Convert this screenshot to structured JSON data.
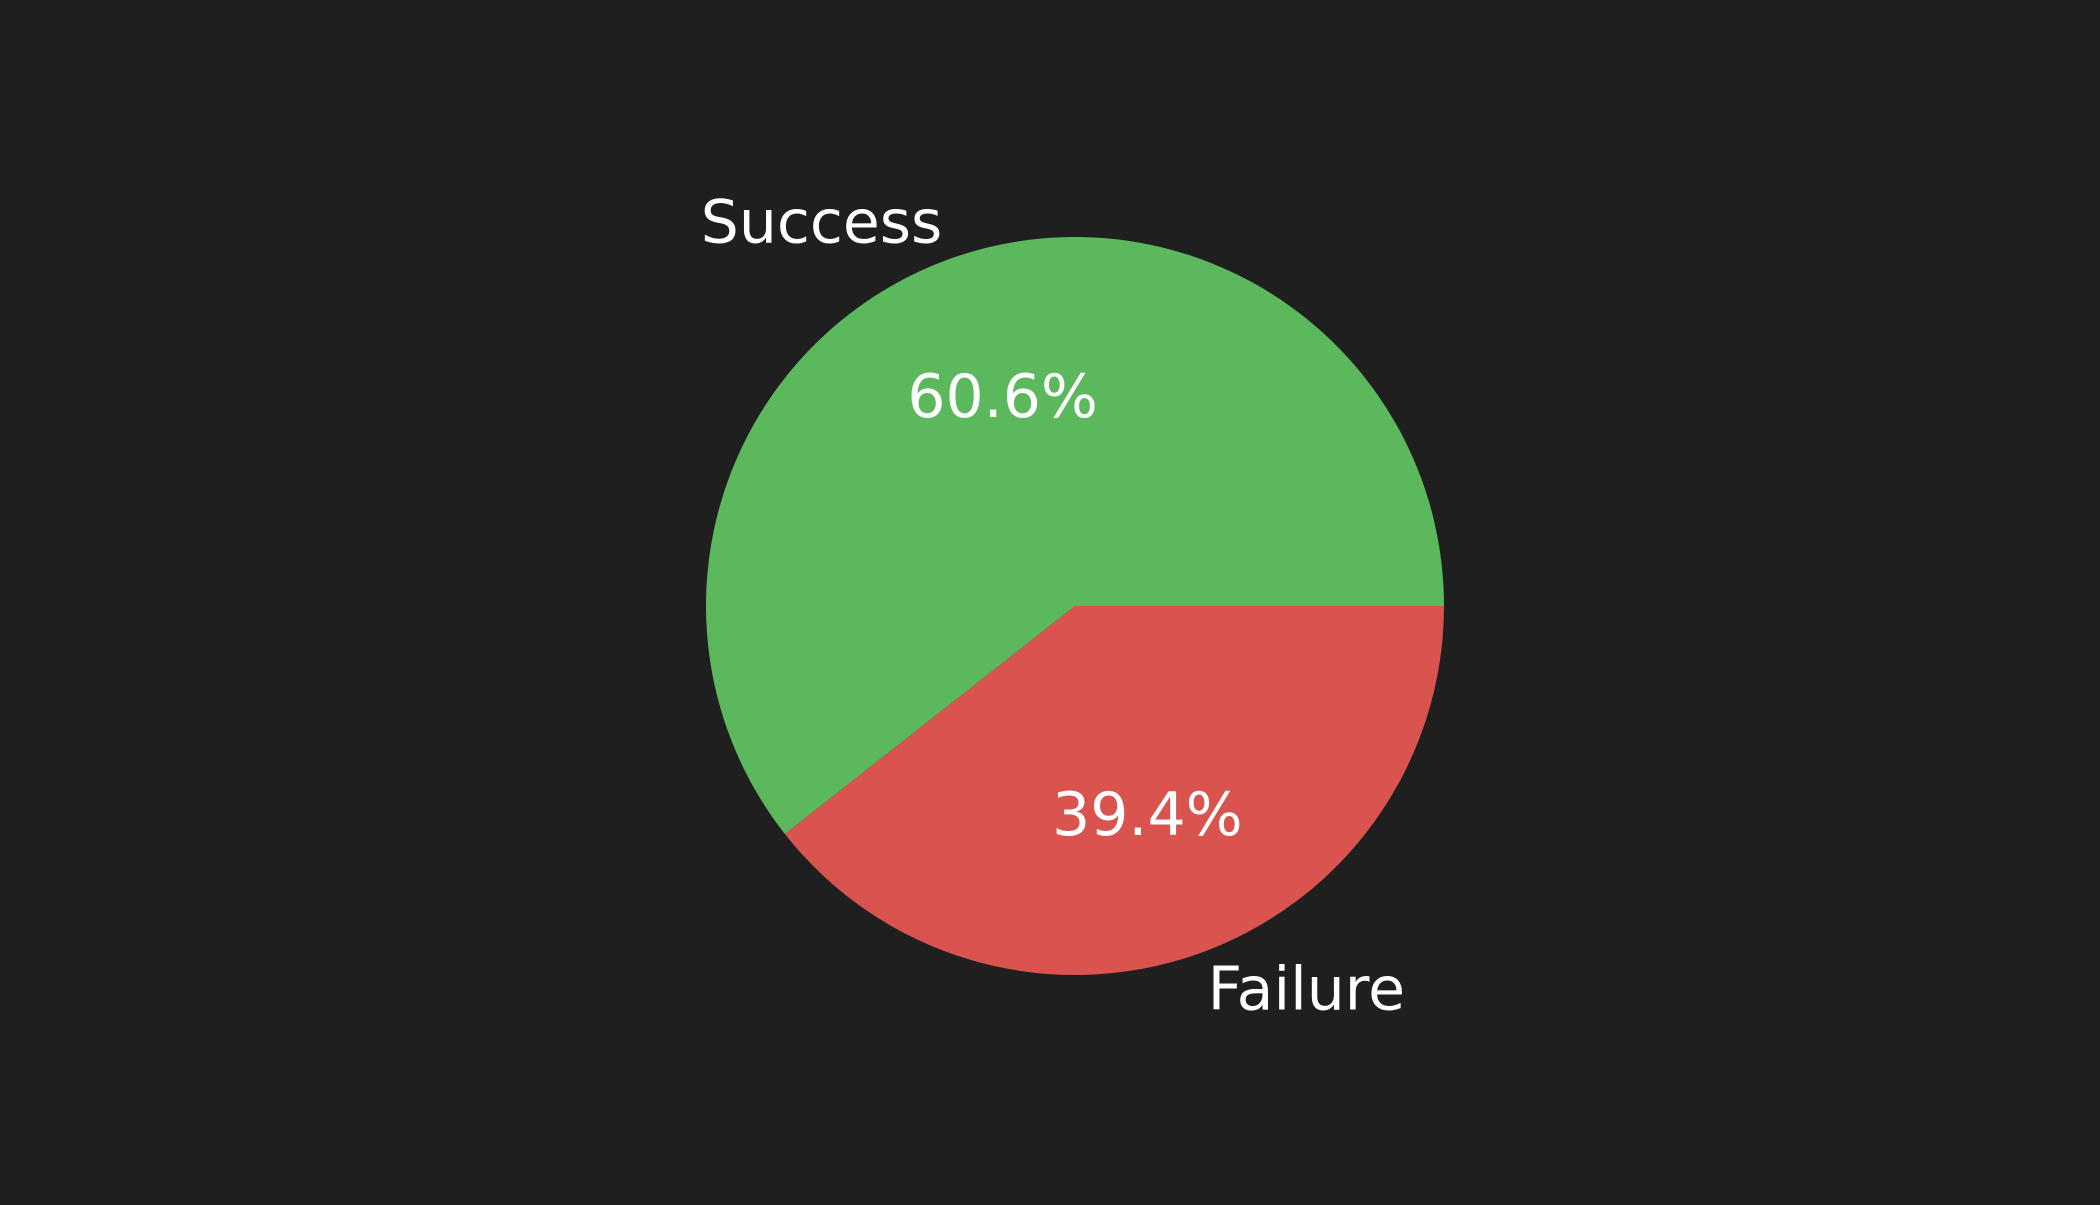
{
  "theme": {
    "background": "#1f1f1f",
    "text_color": "#ffffff"
  },
  "chart_data": {
    "type": "pie",
    "title": "",
    "categories": [
      "Success",
      "Failure"
    ],
    "values": [
      60.6,
      39.4
    ],
    "value_labels": [
      "60.6%",
      "39.4%"
    ],
    "colors": [
      "#5cb85c",
      "#d9534f"
    ],
    "start_angle_deg": 0,
    "direction": "counterclockwise",
    "legend": "none"
  }
}
